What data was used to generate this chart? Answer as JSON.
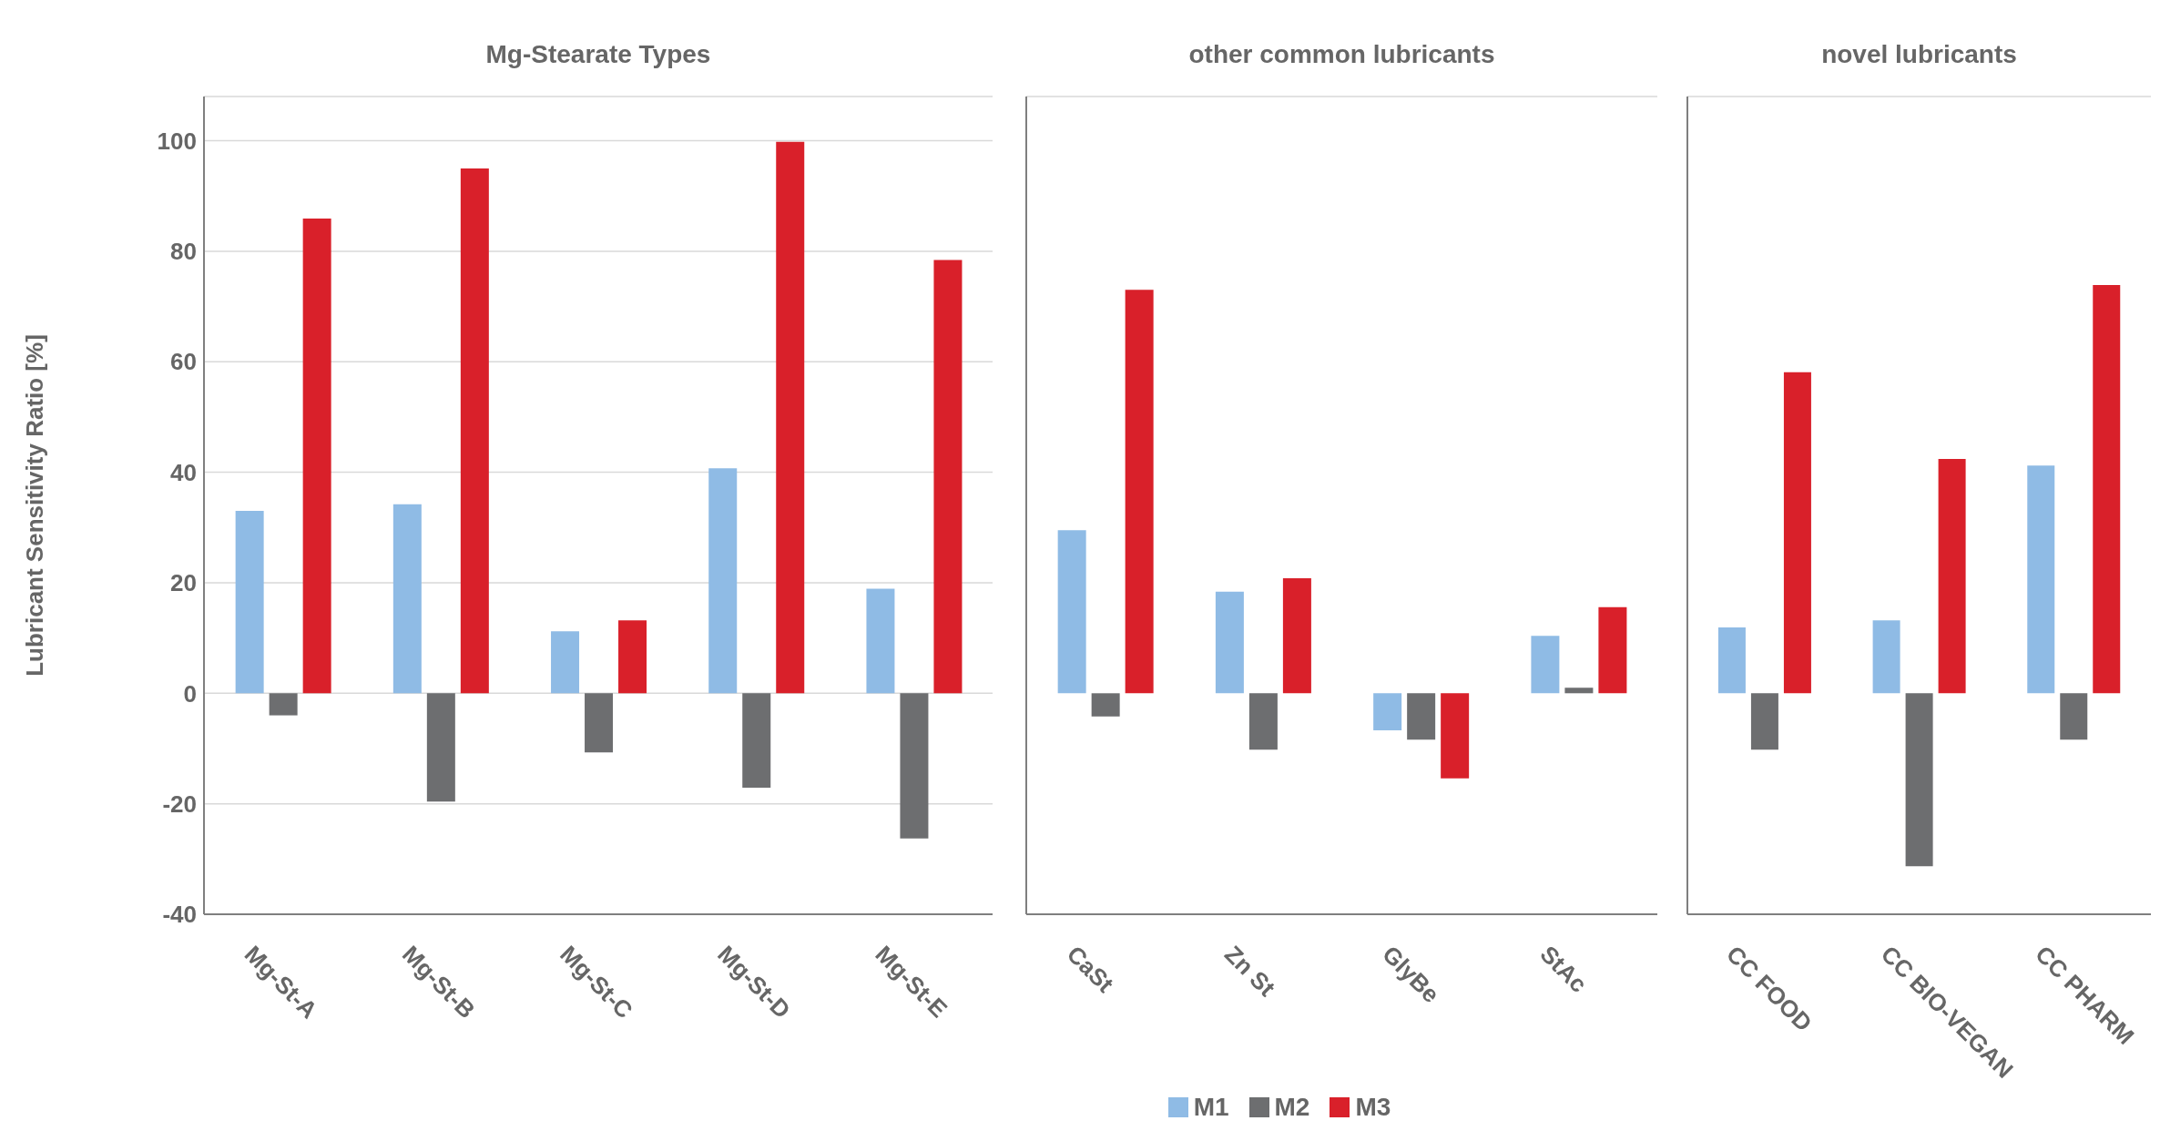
{
  "chart_data": [
    {
      "type": "bar",
      "title": "Mg-Stearate Types",
      "ylabel": "Lubricant Sensitivity Ratio [%]",
      "categories": [
        "Mg-St-A",
        "Mg-St-B",
        "Mg-St-C",
        "Mg-St-D",
        "Mg-St-E"
      ],
      "series": [
        {
          "color": "#8fbbe5",
          "values": [
            33.0,
            34.2,
            11.2,
            40.7,
            18.9
          ]
        },
        {
          "color": "#6d6e70",
          "values": [
            -4.0,
            -19.6,
            -10.7,
            -17.1,
            -26.3
          ]
        },
        {
          "color": "#d9202a",
          "values": [
            85.9,
            95.0,
            13.2,
            99.8,
            78.4
          ]
        }
      ],
      "ylim": [
        -40,
        108
      ],
      "yticks": [
        -40,
        -20,
        0,
        20,
        40,
        60,
        80,
        100
      ],
      "grid": "y"
    },
    {
      "type": "bar",
      "title": "other common lubricants",
      "categories": [
        "CaSt",
        "Zn St",
        "GlyBe",
        "StAc"
      ],
      "series": [
        {
          "name": "M1",
          "color": "#8fbbe5",
          "values": [
            29.5,
            18.4,
            -6.7,
            10.4
          ]
        },
        {
          "name": "M2",
          "color": "#6d6e70",
          "values": [
            -4.2,
            -10.2,
            -8.4,
            1.0
          ]
        },
        {
          "name": "M3",
          "color": "#d9202a",
          "values": [
            73.0,
            20.8,
            -15.4,
            15.6
          ]
        }
      ],
      "ylim": [
        -40,
        108
      ],
      "yticks": [
        -40,
        -20,
        0,
        20,
        40,
        60,
        80,
        100
      ],
      "grid": "y",
      "tick_labels": "x",
      "legend": "bottom"
    },
    {
      "type": "bar",
      "title": "novel lubricants",
      "categories": [
        "CC FOOD",
        "CC BIO-VEGAN",
        "CC PHARM"
      ],
      "series": [
        {
          "color": "#8fbbe5",
          "values": [
            11.9,
            13.2,
            41.2
          ]
        },
        {
          "color": "#6d6e70",
          "values": [
            -10.2,
            -31.3,
            -8.4
          ]
        },
        {
          "color": "#d9202a",
          "values": [
            58.1,
            42.4,
            73.9
          ]
        }
      ],
      "ylim": [
        -40,
        108
      ],
      "yticks": [
        -40,
        -20,
        0,
        20,
        40,
        60,
        80,
        100
      ],
      "grid": "y",
      "tick_labels": "x"
    }
  ]
}
